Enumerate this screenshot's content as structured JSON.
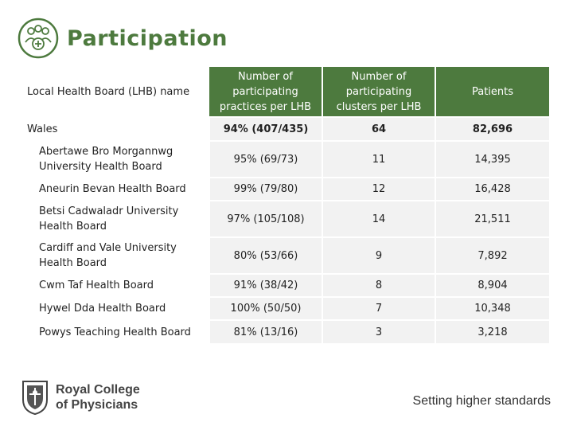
{
  "header": {
    "title": "Participation",
    "icon": "people-network-icon",
    "accent_color": "#4d7a3e"
  },
  "table": {
    "columns": [
      "Local Health Board (LHB) name",
      "Number of participating practices per LHB",
      "Number of participating clusters per LHB",
      "Patients"
    ],
    "rows": [
      {
        "name": "Wales",
        "practices": "94% (407/435)",
        "clusters": "64",
        "patients": "82,696"
      },
      {
        "name": "Abertawe Bro Morgannwg University Health Board",
        "practices": "95% (69/73)",
        "clusters": "11",
        "patients": "14,395"
      },
      {
        "name": "Aneurin Bevan Health Board",
        "practices": "99% (79/80)",
        "clusters": "12",
        "patients": "16,428"
      },
      {
        "name": "Betsi Cadwaladr University Health Board",
        "practices": "97% (105/108)",
        "clusters": "14",
        "patients": "21,511"
      },
      {
        "name": "Cardiff  and Vale University Health Board",
        "practices": "80% (53/66)",
        "clusters": "9",
        "patients": "7,892"
      },
      {
        "name": "Cwm Taf Health Board",
        "practices": "91% (38/42)",
        "clusters": "8",
        "patients": "8,904"
      },
      {
        "name": "Hywel Dda Health Board",
        "practices": "100% (50/50)",
        "clusters": "7",
        "patients": "10,348"
      },
      {
        "name": "Powys Teaching Health Board",
        "practices": "81% (13/16)",
        "clusters": "3",
        "patients": "3,218"
      }
    ]
  },
  "footer": {
    "logo_line1": "Royal College",
    "logo_line2": "of Physicians",
    "tagline": "Setting higher standards",
    "logo_icon": "rcp-crest-icon"
  }
}
